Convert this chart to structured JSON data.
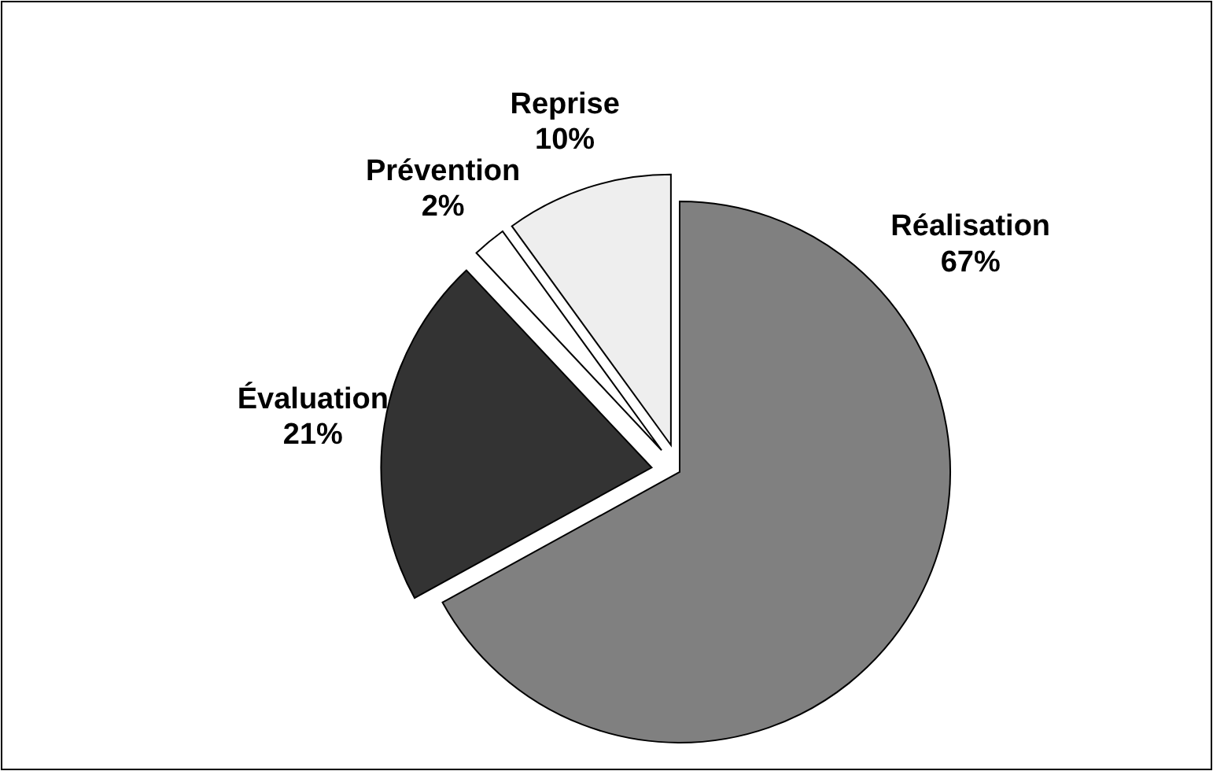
{
  "chart_data": {
    "type": "pie",
    "categories": [
      "Réalisation",
      "Évaluation",
      "Prévention",
      "Reprise"
    ],
    "values": [
      67,
      21,
      2,
      10
    ],
    "colors": [
      "#808080",
      "#333333",
      "#ffffff",
      "#eeeeee"
    ],
    "value_labels": [
      "67%",
      "21%",
      "2%",
      "10%"
    ]
  }
}
